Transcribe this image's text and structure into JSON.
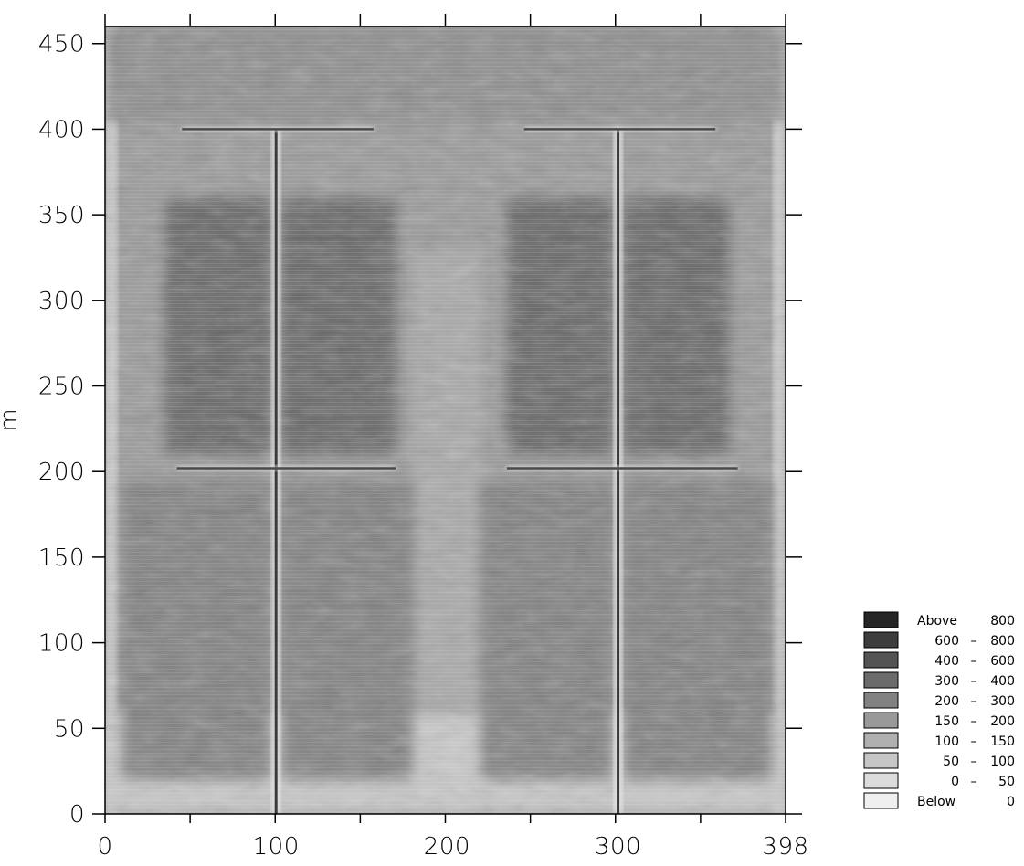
{
  "chart_data": {
    "type": "heatmap",
    "title": "",
    "xlabel": "",
    "ylabel": "m",
    "xlim": [
      0,
      398
    ],
    "ylim": [
      0,
      460
    ],
    "x_ticks": [
      "0",
      "100",
      "200",
      "300",
      "398"
    ],
    "y_ticks": [
      "0",
      "50",
      "100",
      "150",
      "200",
      "250",
      "300",
      "350",
      "400",
      "450"
    ],
    "legend": {
      "placement": "bottom-right",
      "entries": [
        {
          "label": "Above",
          "value": "800",
          "color": "#262626"
        },
        {
          "label": "600",
          "value": "800",
          "color": "#3d3d3d"
        },
        {
          "label": "400",
          "value": "600",
          "color": "#545454"
        },
        {
          "label": "300",
          "value": "400",
          "color": "#6b6b6b"
        },
        {
          "label": "200",
          "value": "300",
          "color": "#828282"
        },
        {
          "label": "150",
          "value": "200",
          "color": "#999999"
        },
        {
          "label": "100",
          "value": "150",
          "color": "#b0b0b0"
        },
        {
          "label": "50",
          "value": "100",
          "color": "#c6c6c6"
        },
        {
          "label": "0",
          "value": "50",
          "color": "#dcdcdc"
        },
        {
          "label": "Below",
          "value": "0",
          "color": "#efefef"
        }
      ],
      "dash": "–"
    },
    "features": {
      "vertical_lines_x": [
        100,
        300
      ],
      "horizontal_lines": [
        {
          "y": 400,
          "x_from": 45,
          "x_to": 157
        },
        {
          "y": 400,
          "x_from": 245,
          "x_to": 357
        },
        {
          "y": 202,
          "x_from": 42,
          "x_to": 170
        },
        {
          "y": 202,
          "x_from": 235,
          "x_to": 370
        }
      ],
      "dark_regions": [
        {
          "x_from": 10,
          "x_to": 97,
          "y_from": 20,
          "y_to": 195,
          "level": "200-300"
        },
        {
          "x_from": 103,
          "x_to": 180,
          "y_from": 20,
          "y_to": 195,
          "level": "200-300"
        },
        {
          "x_from": 220,
          "x_to": 297,
          "y_from": 20,
          "y_to": 195,
          "level": "200-300"
        },
        {
          "x_from": 303,
          "x_to": 390,
          "y_from": 20,
          "y_to": 195,
          "level": "200-300"
        },
        {
          "x_from": 35,
          "x_to": 97,
          "y_from": 210,
          "y_to": 360,
          "level": "300-400"
        },
        {
          "x_from": 103,
          "x_to": 170,
          "y_from": 210,
          "y_to": 360,
          "level": "300-400"
        },
        {
          "x_from": 235,
          "x_to": 297,
          "y_from": 210,
          "y_to": 360,
          "level": "300-400"
        },
        {
          "x_from": 303,
          "x_to": 365,
          "y_from": 210,
          "y_to": 360,
          "level": "300-400"
        }
      ]
    }
  }
}
